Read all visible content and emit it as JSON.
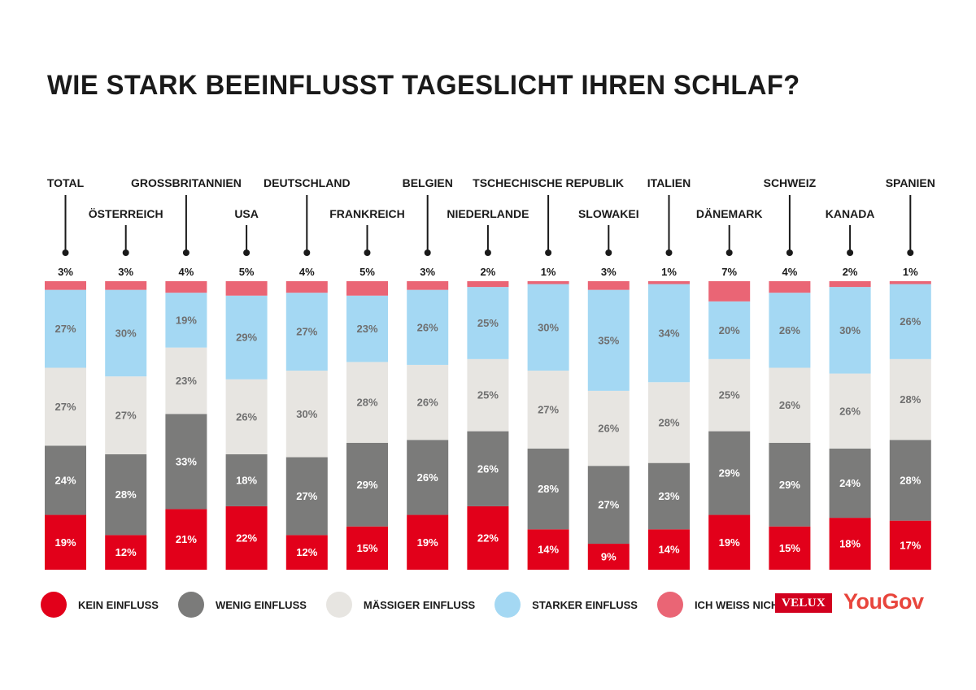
{
  "title": "WIE STARK BEEINFLUSST TAGESLICHT IHREN SCHLAF?",
  "chart_data": {
    "type": "bar",
    "stacked": true,
    "unit": "%",
    "categories": [
      "TOTAL",
      "ÖSTERREICH",
      "GROSSBRITANNIEN",
      "USA",
      "DEUTSCHLAND",
      "FRANKREICH",
      "BELGIEN",
      "NIEDERLANDE",
      "TSCHECHISCHE REPUBLIK",
      "SLOWAKEI",
      "ITALIEN",
      "DÄNEMARK",
      "SCHWEIZ",
      "KANADA",
      "SPANIEN"
    ],
    "series": [
      {
        "name": "KEIN EINFLUSS",
        "color": "#e2001a",
        "values": [
          19,
          12,
          21,
          22,
          12,
          15,
          19,
          22,
          14,
          9,
          14,
          19,
          15,
          18,
          17
        ]
      },
      {
        "name": "WENIG EINFLUSS",
        "color": "#7b7b7a",
        "values": [
          24,
          28,
          33,
          18,
          27,
          29,
          26,
          26,
          28,
          27,
          23,
          29,
          29,
          24,
          28
        ]
      },
      {
        "name": "MÄSSIGER EINFLUSS",
        "color": "#e7e5e1",
        "values": [
          27,
          27,
          23,
          26,
          30,
          28,
          26,
          25,
          27,
          26,
          28,
          25,
          26,
          26,
          28
        ]
      },
      {
        "name": "STARKER EINFLUSS",
        "color": "#a4d8f3",
        "values": [
          27,
          30,
          19,
          29,
          27,
          23,
          26,
          25,
          30,
          35,
          34,
          20,
          26,
          30,
          26
        ]
      },
      {
        "name": "ICH WEISS NICHT",
        "color": "#ea6575",
        "values": [
          3,
          3,
          4,
          5,
          4,
          5,
          3,
          2,
          1,
          3,
          1,
          7,
          4,
          2,
          1
        ]
      }
    ],
    "top_labels": [
      "3%",
      "3%",
      "4%",
      "5%",
      "4%",
      "5%",
      "3%",
      "2%",
      "1%",
      "3%",
      "1%",
      "7%",
      "4%",
      "2%",
      "1%"
    ]
  },
  "legend": {
    "items": [
      {
        "label": "KEIN EINFLUSS",
        "color": "#e2001a"
      },
      {
        "label": "WENIG EINFLUSS",
        "color": "#7b7b7a"
      },
      {
        "label": "MÄSSIGER EINFLUSS",
        "color": "#e7e5e1"
      },
      {
        "label": "STARKER EINFLUSS",
        "color": "#a4d8f3"
      },
      {
        "label": "ICH WEISS NICHT",
        "color": "#ea6575"
      }
    ]
  },
  "logos": {
    "velux": "VELUX",
    "yougov": "YouGov"
  }
}
